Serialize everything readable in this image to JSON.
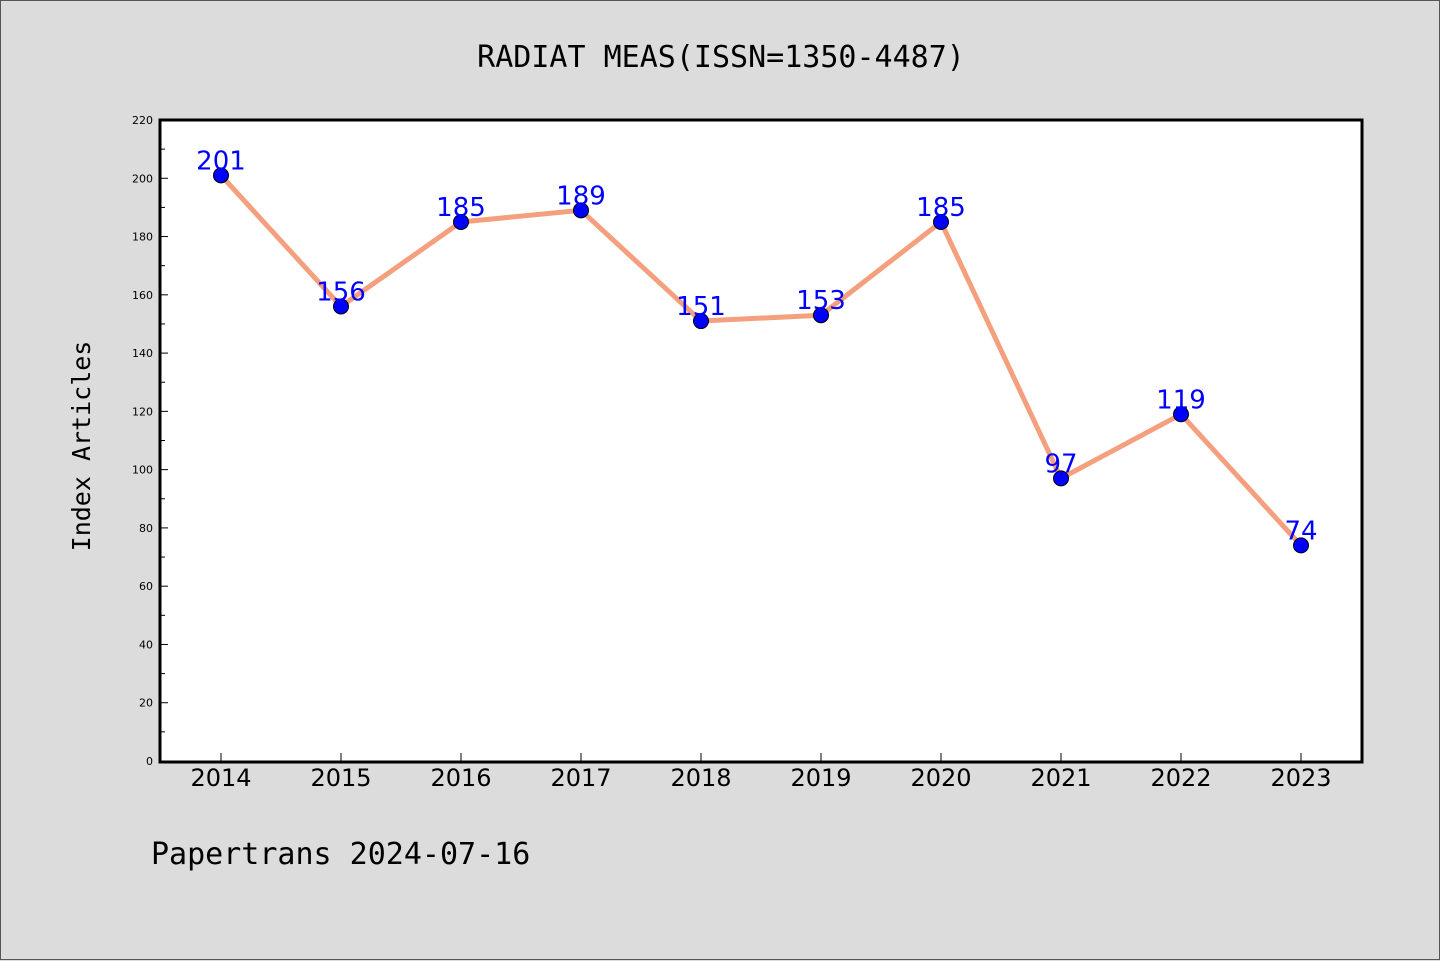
{
  "chart_data": {
    "type": "line",
    "title": "RADIAT MEAS(ISSN=1350-4487)",
    "xlabel": "",
    "ylabel": "Index Articles",
    "categories": [
      "2014",
      "2015",
      "2016",
      "2017",
      "2018",
      "2019",
      "2020",
      "2021",
      "2022",
      "2023"
    ],
    "series": [
      {
        "values": [
          201,
          156,
          185,
          189,
          151,
          153,
          185,
          97,
          119,
          74
        ]
      }
    ],
    "ylim": [
      0,
      220
    ],
    "yticks": [
      0,
      20,
      40,
      60,
      80,
      100,
      120,
      140,
      160,
      180,
      200,
      220
    ],
    "data_labels": true,
    "grid": false,
    "colors": {
      "line": "#f4a07e",
      "marker": "#0000ff",
      "label": "#0000ff",
      "plot_background": "#ffffff",
      "figure_background": "#dcdcdc"
    }
  },
  "footer": {
    "text": "Papertrans 2024-07-16"
  }
}
